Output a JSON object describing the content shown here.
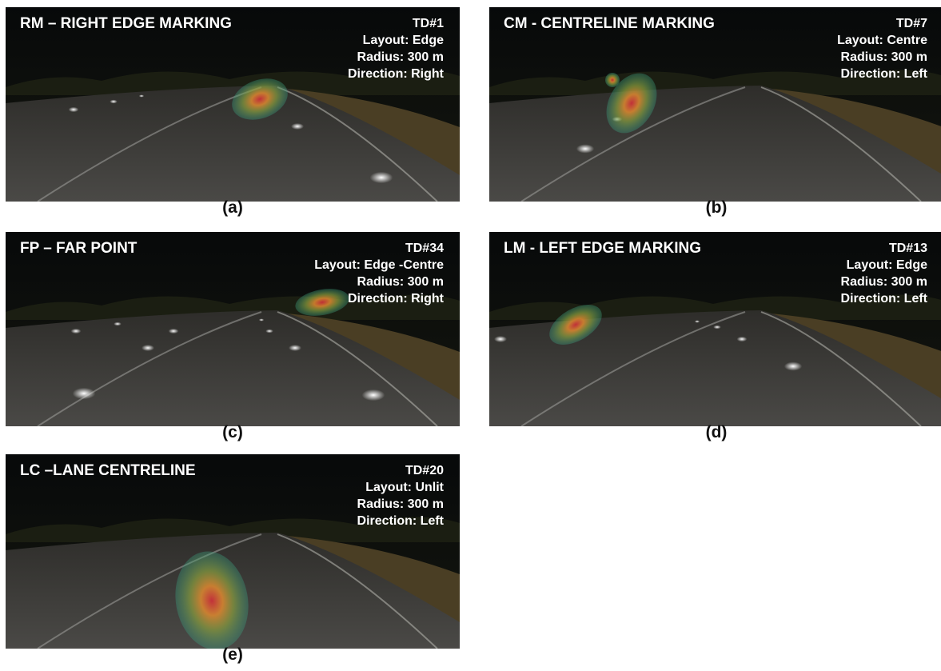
{
  "panels": [
    {
      "title": "RM – RIGHT EDGE MARKING",
      "td": "TD#1",
      "layout": "Layout: Edge",
      "radius": "Radius: 300 m",
      "direction": "Direction: Right",
      "caption": "(a)"
    },
    {
      "title": "CM - CENTRELINE MARKING",
      "td": "TD#7",
      "layout": "Layout: Centre",
      "radius": "Radius: 300 m",
      "direction": "Direction: Left",
      "caption": "(b)"
    },
    {
      "title": "FP – FAR POINT",
      "td": "TD#34",
      "layout": "Layout: Edge -Centre",
      "radius": "Radius: 300 m",
      "direction": "Direction: Right",
      "caption": "(c)"
    },
    {
      "title": "LM - LEFT EDGE MARKING",
      "td": "TD#13",
      "layout": "Layout: Edge",
      "radius": "Radius: 300 m",
      "direction": "Direction: Left",
      "caption": "(d)"
    },
    {
      "title": "LC –LANE CENTRELINE",
      "td": "TD#20",
      "layout": "Layout: Unlit",
      "radius": "Radius: 300 m",
      "direction": "Direction: Left",
      "caption": "(e)"
    }
  ]
}
